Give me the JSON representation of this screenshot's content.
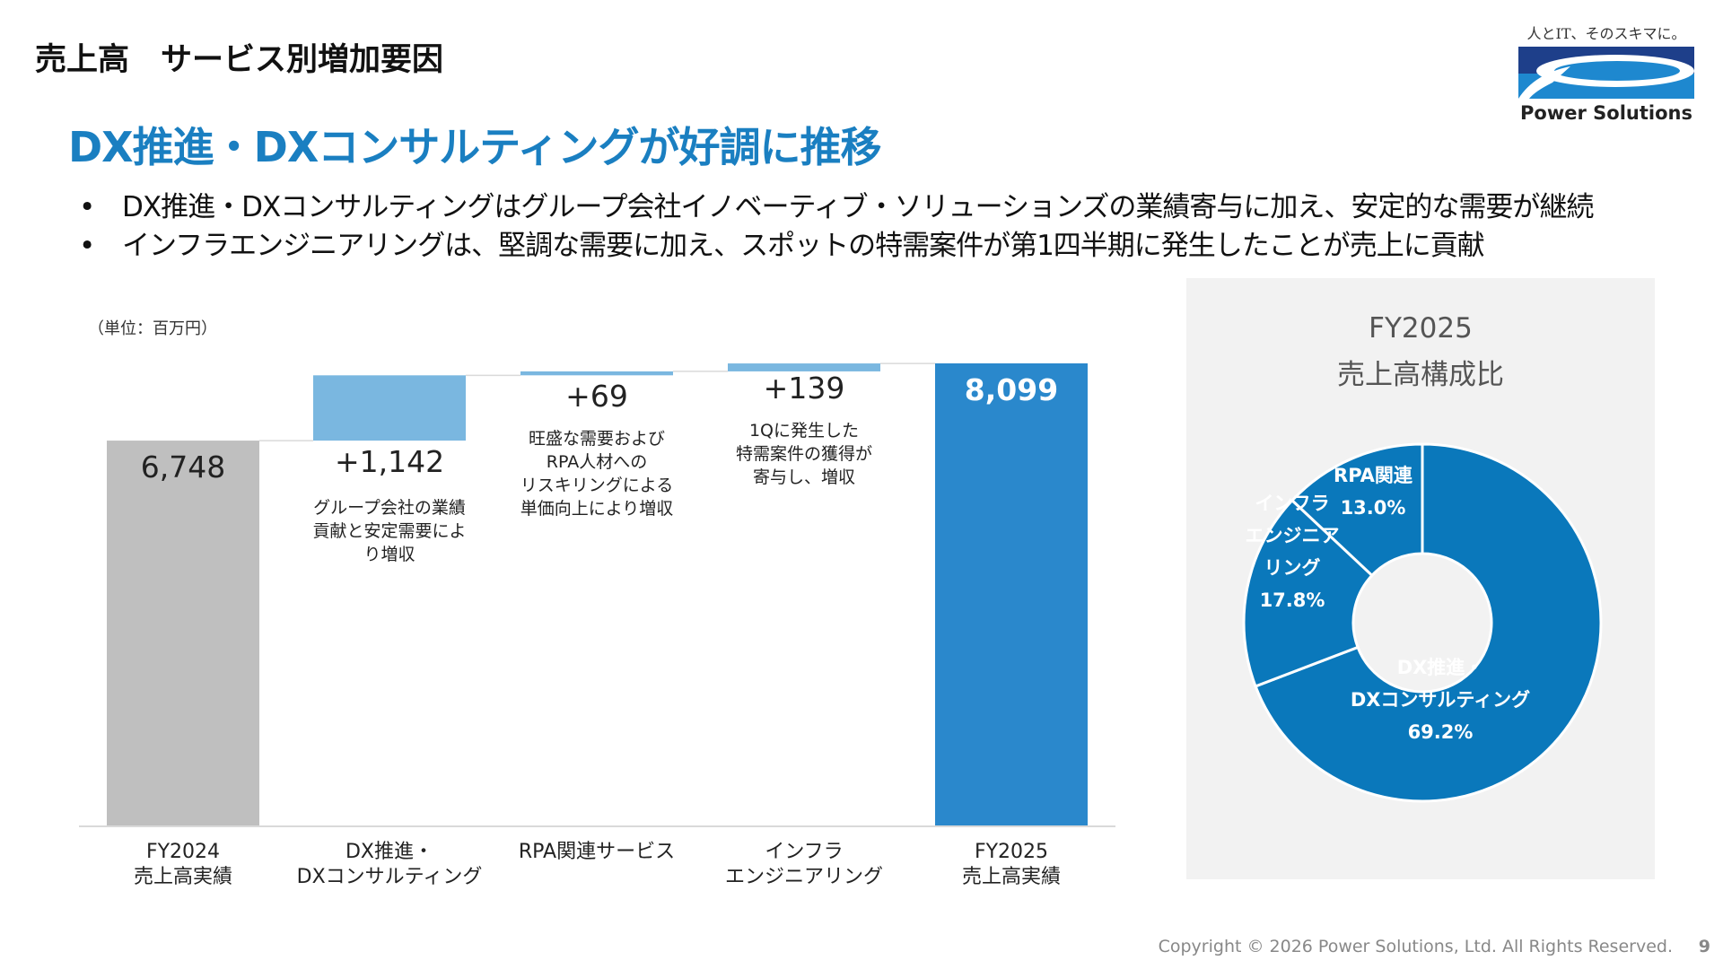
{
  "header": {
    "title": "売上高　サービス別増加要因",
    "subtitle": "DX推進・DXコンサルティングが好調に推移"
  },
  "bullets": [
    "DX推進・DXコンサルティングはグループ会社イノベーティブ・ソリューションズの業績寄与に加え、安定的な需要が継続",
    "インフラエンジニアリングは、堅調な需要に加え、スポットの特需案件が第1四半期に発生したことが売上に貢献"
  ],
  "bullet_marker": "•",
  "logo": {
    "tagline": "人とIT、そのスキマに。",
    "name": "Power Solutions"
  },
  "chart_data": [
    {
      "type": "waterfall",
      "unit_label": "（単位：百万円）",
      "categories": [
        "FY2024\n売上高実績",
        "DX推進・\nDXコンサルティング",
        "RPA関連サービス",
        "インフラ\nエンジニアリング",
        "FY2025\n売上高実績"
      ],
      "values": [
        6748,
        1142,
        69,
        139,
        8099
      ],
      "kinds": [
        "total",
        "delta",
        "delta",
        "delta",
        "total"
      ],
      "data_labels": [
        "6,748",
        "+1,142",
        "+69",
        "+139",
        "8,099"
      ],
      "notes": [
        "",
        "グループ会社の業績\n貢献と安定需要によ\nり増収",
        "旺盛な需要および\nRPA人材への\nリスキリングによる\n単価向上により増収",
        "1Qに発生した\n特需案件の獲得が\n寄与し、増収",
        ""
      ],
      "ylim": [
        0,
        8099
      ],
      "colors": {
        "start": "#bfbfbf",
        "delta": "#7ab7e0",
        "end": "#2a88cc"
      }
    },
    {
      "type": "pie",
      "donut": true,
      "title": "FY2025\n売上高構成比",
      "title_lines": [
        "FY2025",
        "売上高構成比"
      ],
      "slices": [
        {
          "label": "DX推進・\nDXコンサルティング",
          "pct_label": "69.2%",
          "value": 69.2
        },
        {
          "label": "インフラ\nエンジニア\nリング",
          "pct_label": "17.8%",
          "value": 17.8
        },
        {
          "label": "RPA関連",
          "pct_label": "13.0%",
          "value": 13.0
        }
      ],
      "color": "#0a78bb"
    }
  ],
  "footer": {
    "copyright": "Copyright © 2026 Power Solutions, Ltd. All Rights Reserved.",
    "page": "9"
  }
}
